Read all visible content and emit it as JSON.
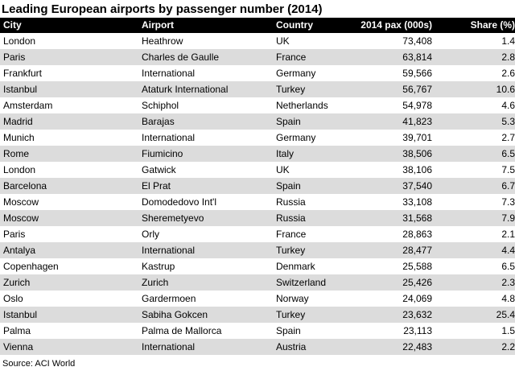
{
  "title": "Leading European airports by passenger number (2014)",
  "columns": [
    "City",
    "Airport",
    "Country",
    "2014 pax (000s)",
    "Share (%)"
  ],
  "rows": [
    [
      "London",
      "Heathrow",
      "UK",
      "73,408",
      "1.4"
    ],
    [
      "Paris",
      "Charles de Gaulle",
      "France",
      "63,814",
      "2.8"
    ],
    [
      "Frankfurt",
      "International",
      "Germany",
      "59,566",
      "2.6"
    ],
    [
      "Istanbul",
      "Ataturk International",
      "Turkey",
      "56,767",
      "10.6"
    ],
    [
      "Amsterdam",
      "Schiphol",
      "Netherlands",
      "54,978",
      "4.6"
    ],
    [
      "Madrid",
      "Barajas",
      "Spain",
      "41,823",
      "5.3"
    ],
    [
      "Munich",
      "International",
      "Germany",
      "39,701",
      "2.7"
    ],
    [
      "Rome",
      "Fiumicino",
      "Italy",
      "38,506",
      "6.5"
    ],
    [
      "London",
      "Gatwick",
      "UK",
      "38,106",
      "7.5"
    ],
    [
      "Barcelona",
      "El Prat",
      "Spain",
      "37,540",
      "6.7"
    ],
    [
      "Moscow",
      "Domodedovo Int'l",
      "Russia",
      "33,108",
      "7.3"
    ],
    [
      "Moscow",
      "Sheremetyevo",
      "Russia",
      "31,568",
      "7.9"
    ],
    [
      "Paris",
      "Orly",
      "France",
      "28,863",
      "2.1"
    ],
    [
      "Antalya",
      "International",
      "Turkey",
      "28,477",
      "4.4"
    ],
    [
      "Copenhagen",
      "Kastrup",
      "Denmark",
      "25,588",
      "6.5"
    ],
    [
      "Zurich",
      "Zurich",
      "Switzerland",
      "25,426",
      "2.3"
    ],
    [
      "Oslo",
      "Gardermoen",
      "Norway",
      "24,069",
      "4.8"
    ],
    [
      "Istanbul",
      "Sabiha Gokcen",
      "Turkey",
      "23,632",
      "25.4"
    ],
    [
      "Palma",
      "Palma de Mallorca",
      "Spain",
      "23,113",
      "1.5"
    ],
    [
      "Vienna",
      "International",
      "Austria",
      "22,483",
      "2.2"
    ]
  ],
  "source": "Source: ACI World",
  "colors": {
    "header_bg": "#000000",
    "header_text": "#ffffff",
    "row_alt_bg": "#dcdcdc"
  }
}
